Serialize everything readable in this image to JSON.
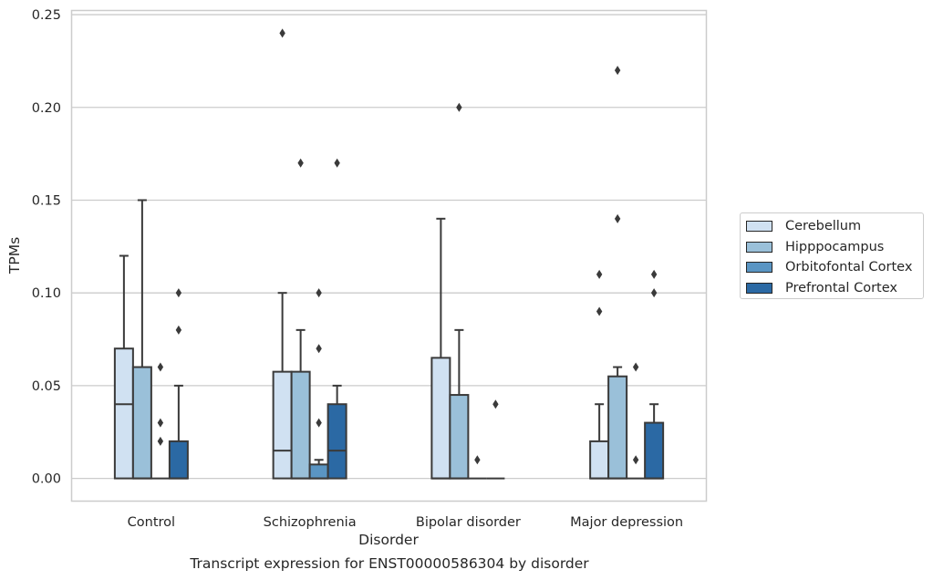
{
  "chart_data": {
    "type": "box",
    "title": "Transcript expression for ENST00000586304 by disorder",
    "xlabel": "Disorder",
    "ylabel": "TPMs",
    "ylim": [
      -0.012,
      0.252
    ],
    "yticks": [
      "0.00",
      "0.05",
      "0.10",
      "0.15",
      "0.20",
      "0.25"
    ],
    "ytick_values": [
      0.0,
      0.05,
      0.1,
      0.15,
      0.2,
      0.25
    ],
    "grid": "horizontal",
    "legend_placement": "right",
    "categories": [
      "Control",
      "Schizophrenia",
      "Bipolar disorder",
      "Major depression"
    ],
    "series": [
      {
        "name": "Cerebellum",
        "color": "#d0e1f2",
        "boxes": [
          {
            "q1": 0.0,
            "median": 0.04,
            "q3": 0.07,
            "whisker_low": 0.0,
            "whisker_high": 0.12,
            "outliers": []
          },
          {
            "q1": 0.0,
            "median": 0.015,
            "q3": 0.0575,
            "whisker_low": 0.0,
            "whisker_high": 0.1,
            "outliers": [
              0.24
            ]
          },
          {
            "q1": 0.0,
            "median": 0.0,
            "q3": 0.065,
            "whisker_low": 0.0,
            "whisker_high": 0.14,
            "outliers": []
          },
          {
            "q1": 0.0,
            "median": 0.0,
            "q3": 0.02,
            "whisker_low": 0.0,
            "whisker_high": 0.04,
            "outliers": [
              0.09,
              0.11
            ]
          }
        ]
      },
      {
        "name": "Hipppocampus",
        "color": "#9ac0d9",
        "boxes": [
          {
            "q1": 0.0,
            "median": 0.0,
            "q3": 0.06,
            "whisker_low": 0.0,
            "whisker_high": 0.15,
            "outliers": []
          },
          {
            "q1": 0.0,
            "median": 0.0,
            "q3": 0.0575,
            "whisker_low": 0.0,
            "whisker_high": 0.08,
            "outliers": [
              0.17
            ]
          },
          {
            "q1": 0.0,
            "median": 0.0,
            "q3": 0.045,
            "whisker_low": 0.0,
            "whisker_high": 0.08,
            "outliers": [
              0.2
            ]
          },
          {
            "q1": 0.0,
            "median": 0.0,
            "q3": 0.055,
            "whisker_low": 0.0,
            "whisker_high": 0.06,
            "outliers": [
              0.14,
              0.22
            ]
          }
        ]
      },
      {
        "name": "Orbitofontal Cortex",
        "color": "#5a95c3",
        "boxes": [
          {
            "q1": 0.0,
            "median": 0.0,
            "q3": 0.0,
            "whisker_low": 0.0,
            "whisker_high": 0.0,
            "outliers": [
              0.02,
              0.03,
              0.06
            ]
          },
          {
            "q1": 0.0,
            "median": 0.0,
            "q3": 0.0075,
            "whisker_low": 0.0,
            "whisker_high": 0.01,
            "outliers": [
              0.03,
              0.07,
              0.1
            ]
          },
          {
            "q1": 0.0,
            "median": 0.0,
            "q3": 0.0,
            "whisker_low": 0.0,
            "whisker_high": 0.0,
            "outliers": [
              0.01
            ]
          },
          {
            "q1": 0.0,
            "median": 0.0,
            "q3": 0.0,
            "whisker_low": 0.0,
            "whisker_high": 0.0,
            "outliers": [
              0.01,
              0.06
            ]
          }
        ]
      },
      {
        "name": "Prefrontal Cortex",
        "color": "#2b69a4",
        "boxes": [
          {
            "q1": 0.0,
            "median": 0.0,
            "q3": 0.02,
            "whisker_low": 0.0,
            "whisker_high": 0.05,
            "outliers": [
              0.08,
              0.1
            ]
          },
          {
            "q1": 0.0,
            "median": 0.015,
            "q3": 0.04,
            "whisker_low": 0.0,
            "whisker_high": 0.05,
            "outliers": [
              0.17
            ]
          },
          {
            "q1": 0.0,
            "median": 0.0,
            "q3": 0.0,
            "whisker_low": 0.0,
            "whisker_high": 0.0,
            "outliers": [
              0.04
            ]
          },
          {
            "q1": 0.0,
            "median": 0.0,
            "q3": 0.03,
            "whisker_low": 0.0,
            "whisker_high": 0.04,
            "outliers": [
              0.1,
              0.11
            ]
          }
        ]
      }
    ]
  }
}
